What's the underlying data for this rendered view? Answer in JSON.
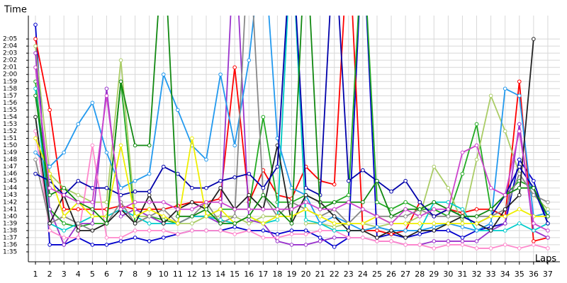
{
  "chart_data": {
    "type": "line",
    "y_label": "Time",
    "x_label": "Laps",
    "x": [
      1,
      2,
      3,
      4,
      5,
      6,
      7,
      8,
      9,
      10,
      11,
      12,
      13,
      14,
      15,
      16,
      17,
      18,
      19,
      20,
      21,
      22,
      23,
      24,
      25,
      26,
      27,
      28,
      29,
      30,
      31,
      32,
      33,
      34,
      35,
      36,
      37
    ],
    "xlim": [
      0.5,
      37.85
    ],
    "xticks": [
      1,
      2,
      3,
      4,
      5,
      6,
      7,
      8,
      9,
      10,
      11,
      12,
      13,
      14,
      15,
      16,
      17,
      18,
      19,
      20,
      21,
      22,
      23,
      24,
      25,
      26,
      27,
      28,
      29,
      30,
      31,
      32,
      33,
      34,
      35,
      36,
      37
    ],
    "ylim": [
      93.6,
      128.3
    ],
    "yticks": [
      {
        "value": 95,
        "label": "1:35"
      },
      {
        "value": 96,
        "label": "1:36"
      },
      {
        "value": 97,
        "label": "1:37"
      },
      {
        "value": 98,
        "label": "1:38"
      },
      {
        "value": 99,
        "label": "1:39"
      },
      {
        "value": 100,
        "label": "1:40"
      },
      {
        "value": 101,
        "label": "1:41"
      },
      {
        "value": 102,
        "label": "1:42"
      },
      {
        "value": 103,
        "label": "1:43"
      },
      {
        "value": 104,
        "label": "1:44"
      },
      {
        "value": 105,
        "label": "1:45"
      },
      {
        "value": 106,
        "label": "1:46"
      },
      {
        "value": 107,
        "label": "1:47"
      },
      {
        "value": 108,
        "label": "1:48"
      },
      {
        "value": 109,
        "label": "1:49"
      },
      {
        "value": 110,
        "label": "1:50"
      },
      {
        "value": 111,
        "label": "1:51"
      },
      {
        "value": 112,
        "label": "1:52"
      },
      {
        "value": 113,
        "label": "1:53"
      },
      {
        "value": 114,
        "label": "1:54"
      },
      {
        "value": 115,
        "label": "1:55"
      },
      {
        "value": 116,
        "label": "1:56"
      },
      {
        "value": 117,
        "label": "1:57"
      },
      {
        "value": 118,
        "label": "1:58"
      },
      {
        "value": 119,
        "label": "1:59"
      },
      {
        "value": 120,
        "label": "2:00"
      },
      {
        "value": 121,
        "label": "2:01"
      },
      {
        "value": 122,
        "label": "2:02"
      },
      {
        "value": 123,
        "label": "2:03"
      },
      {
        "value": 124,
        "label": "2:04"
      },
      {
        "value": 125,
        "label": "2:05"
      }
    ],
    "grid": true,
    "series": [
      {
        "color": "#0000cc",
        "values": [
          127,
          96,
          96,
          97,
          96,
          96,
          96.5,
          97,
          96.5,
          97,
          97.5,
          98,
          98,
          98,
          98.5,
          98,
          98,
          97.5,
          98,
          98,
          97,
          95.7,
          97,
          140,
          97,
          97.5,
          97,
          97.5,
          98,
          98,
          97,
          98,
          98.5,
          99,
          108,
          105,
          99
        ]
      },
      {
        "color": "#ff0000",
        "values": [
          125,
          115,
          101,
          101,
          101,
          101,
          101.5,
          101,
          101,
          101,
          101.5,
          102,
          102,
          102.5,
          121,
          102,
          106.5,
          103,
          102.5,
          107,
          105,
          104.5,
          140,
          98,
          98,
          97.5,
          98,
          102,
          100,
          101,
          100.5,
          101,
          101,
          100,
          119,
          96.5,
          97
        ]
      },
      {
        "color": "#22aa22",
        "values": [
          119,
          101,
          99,
          98.5,
          99,
          99,
          119,
          99,
          100,
          99.5,
          99,
          100,
          100,
          101,
          101,
          101,
          114,
          102,
          102,
          103,
          102,
          102,
          103,
          140,
          102,
          101,
          102,
          101,
          101,
          100,
          106,
          113,
          101,
          103,
          105,
          104,
          100
        ]
      },
      {
        "color": "#aacc66",
        "values": [
          124,
          106,
          104,
          103,
          102,
          102,
          122,
          100,
          100,
          99,
          99,
          99,
          100,
          100,
          100,
          99,
          100,
          100,
          140,
          99,
          99,
          98.5,
          99,
          99,
          98.5,
          99,
          99,
          100,
          107,
          104,
          99,
          108,
          117,
          112,
          106,
          103,
          101
        ]
      },
      {
        "color": "#9933cc",
        "values": [
          123,
          101,
          96,
          99,
          99,
          118,
          100,
          101,
          100,
          99,
          99,
          100,
          100,
          99,
          140,
          99.5,
          99,
          96.5,
          96,
          96,
          96.5,
          97,
          97,
          97,
          96.5,
          96.5,
          96,
          96,
          96.5,
          96.5,
          96.5,
          96.5,
          98,
          99,
          113,
          98,
          97
        ]
      },
      {
        "color": "#ff88cc",
        "values": [
          112,
          98,
          97,
          97,
          110,
          97,
          97,
          98,
          98,
          98,
          97.5,
          98,
          98,
          98,
          97.5,
          98,
          97,
          97,
          97.5,
          97.5,
          98,
          98,
          97,
          97,
          96.5,
          96.5,
          96,
          96,
          95.5,
          96,
          96,
          95.5,
          95.5,
          96,
          95.5,
          96,
          95.5
        ]
      },
      {
        "color": "#00cccc",
        "values": [
          118,
          99,
          98,
          99,
          100,
          100,
          101,
          100,
          99,
          99,
          99,
          100,
          100,
          99.5,
          99,
          100,
          99,
          99.5,
          140,
          99.5,
          99,
          98,
          98,
          98,
          98.5,
          98,
          98,
          98,
          102,
          102,
          101,
          98,
          98,
          98,
          99,
          98,
          99
        ]
      },
      {
        "color": "#2299ee",
        "values": [
          109,
          107,
          109,
          113,
          116,
          109,
          104,
          105,
          106,
          120,
          115,
          110,
          108,
          120,
          110,
          122,
          140,
          111,
          104,
          103,
          99,
          100,
          99,
          98,
          98.5,
          98,
          98,
          98,
          98.5,
          99,
          98.5,
          98,
          99,
          118,
          117,
          100,
          100.5
        ]
      },
      {
        "color": "#888888",
        "values": [
          108,
          99,
          100,
          99,
          98,
          99,
          102,
          99,
          100,
          101,
          99,
          100,
          102,
          99,
          100,
          140,
          103,
          100,
          102,
          101,
          100,
          101,
          99,
          101,
          100,
          100,
          100,
          101,
          100,
          100,
          100,
          100,
          100,
          101,
          106,
          103,
          102
        ]
      },
      {
        "color": "#222222",
        "values": [
          114,
          99,
          103,
          98,
          98,
          99,
          101,
          99,
          103,
          99,
          101,
          102,
          101,
          104,
          101,
          103,
          101,
          110,
          99,
          103,
          102,
          100,
          98,
          98,
          97,
          98,
          97,
          98,
          98,
          99,
          100,
          99,
          98,
          101,
          103,
          125,
          null
        ]
      },
      {
        "color": "#0000aa",
        "values": [
          106,
          105,
          103,
          105,
          104,
          104,
          103,
          103.5,
          103.5,
          107,
          106,
          104,
          104,
          105,
          105.5,
          106,
          104,
          107,
          140,
          104,
          103,
          140,
          105,
          106.5,
          105,
          103.5,
          105,
          102,
          100,
          101,
          100,
          99,
          100,
          103,
          107,
          104,
          99
        ]
      },
      {
        "color": "#eeee00",
        "values": [
          111,
          106,
          100,
          102,
          100,
          100,
          110,
          100,
          101,
          100,
          99,
          111,
          100,
          101,
          99,
          100,
          99,
          100,
          100,
          101,
          100,
          99,
          99,
          99,
          100,
          99,
          99,
          99,
          99,
          99,
          99,
          99,
          100,
          100,
          101,
          100,
          100
        ]
      },
      {
        "color": "#118811",
        "values": [
          117,
          103,
          104,
          102,
          101,
          99,
          119,
          110,
          110,
          140,
          100,
          100,
          101,
          99,
          99,
          100,
          103,
          101,
          99,
          140,
          101,
          102,
          102,
          102,
          105,
          100,
          101,
          101,
          102,
          101,
          100,
          100,
          101,
          103,
          104,
          104,
          100
        ]
      },
      {
        "color": "#cc44cc",
        "values": [
          121,
          104,
          103,
          102,
          102,
          117,
          101,
          102,
          102,
          102,
          101,
          101,
          102,
          102,
          101,
          101,
          101,
          101,
          101,
          102,
          101,
          101,
          102,
          101,
          100,
          99,
          101,
          100,
          101,
          101,
          109,
          110,
          104,
          103,
          112,
          99,
          98
        ]
      }
    ]
  }
}
